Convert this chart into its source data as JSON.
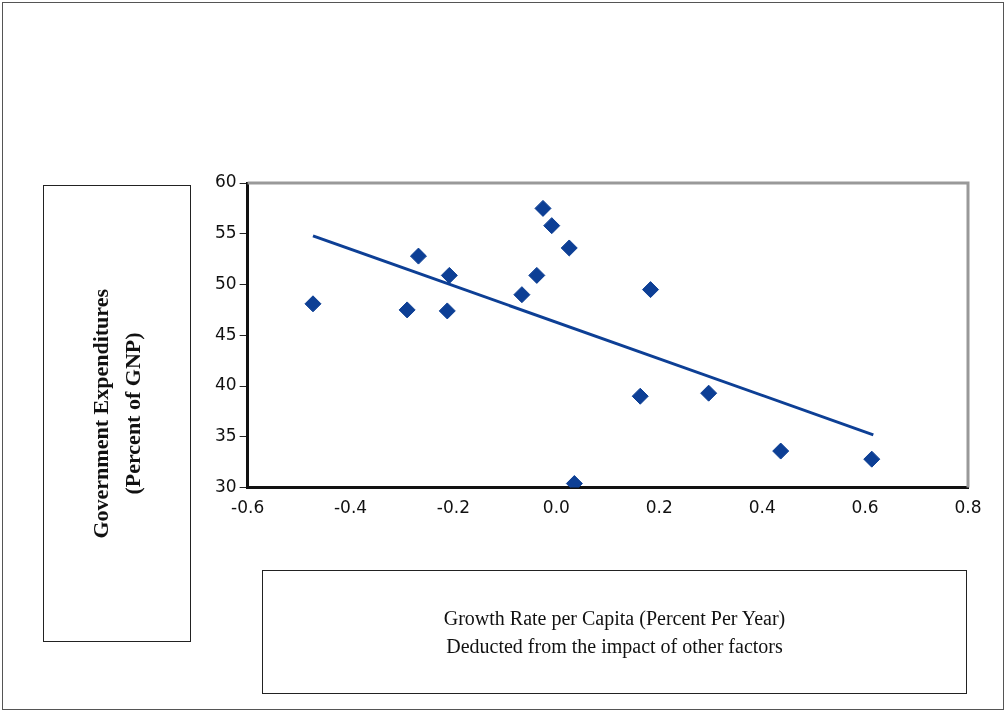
{
  "chart_data": {
    "type": "scatter",
    "xlabel": "Growth Rate per Capita (Percent Per Year)\nDeducted from the impact of other factors",
    "ylabel": "Government Expenditures\n(Percent of GNP)",
    "series": [
      {
        "color": "#0d3f95",
        "marker": "diamond",
        "x": [
          -0.473,
          -0.29,
          -0.268,
          -0.212,
          -0.208,
          -0.067,
          -0.038,
          -0.026,
          -0.009,
          0.025,
          0.035,
          0.163,
          0.183,
          0.296,
          0.436,
          0.613
        ],
        "values": [
          48.1,
          47.5,
          52.8,
          47.4,
          50.9,
          49.0,
          50.9,
          57.5,
          55.8,
          53.6,
          30.4,
          39.0,
          49.5,
          39.3,
          33.6,
          32.8
        ]
      },
      {
        "type": "line",
        "color": "#0d3f95",
        "marker": "none",
        "x": [
          -0.473,
          0.616
        ],
        "values": [
          54.8,
          35.2
        ]
      }
    ],
    "xlim": [
      -0.6,
      0.8
    ],
    "xticks": [
      -0.6,
      -0.4,
      -0.2,
      {
        "value": 0,
        "label": "0.0"
      },
      0.2,
      0.4,
      0.6,
      0.8
    ],
    "ylim": [
      30,
      60
    ],
    "yticks": [
      30,
      35,
      40,
      45,
      50,
      55,
      60
    ],
    "grid": false,
    "legend": false,
    "line_style": "solid"
  }
}
